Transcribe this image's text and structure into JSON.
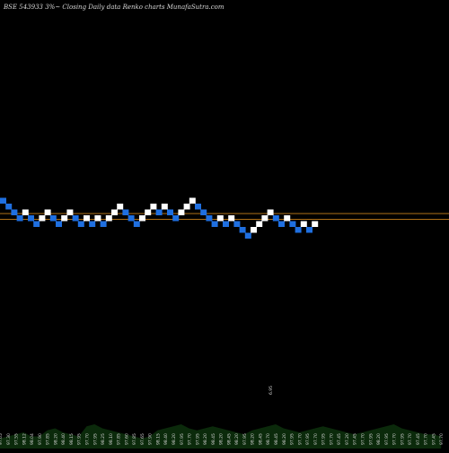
{
  "chart_data": {
    "type": "renko",
    "title": "BSE 543933 3%~   Closing Daily data  Renko  charts MunafaSutra.com",
    "colors": {
      "background": "#000000",
      "up": "#ffffff",
      "down": "#1f6fe0",
      "line": "#c8801a",
      "volume": "#0b2a0b",
      "label": "#dcdcdc"
    },
    "reference_levels": [
      2.3,
      1.3
    ],
    "bricks": [
      {
        "dir": "down",
        "level": 4
      },
      {
        "dir": "down",
        "level": 3
      },
      {
        "dir": "down",
        "level": 2
      },
      {
        "dir": "down",
        "level": 1
      },
      {
        "dir": "up",
        "level": 2
      },
      {
        "dir": "down",
        "level": 1
      },
      {
        "dir": "down",
        "level": 0
      },
      {
        "dir": "up",
        "level": 1
      },
      {
        "dir": "up",
        "level": 2
      },
      {
        "dir": "down",
        "level": 1
      },
      {
        "dir": "down",
        "level": 0
      },
      {
        "dir": "up",
        "level": 1
      },
      {
        "dir": "up",
        "level": 2
      },
      {
        "dir": "down",
        "level": 1
      },
      {
        "dir": "down",
        "level": 0
      },
      {
        "dir": "up",
        "level": 1
      },
      {
        "dir": "down",
        "level": 0
      },
      {
        "dir": "up",
        "level": 1
      },
      {
        "dir": "down",
        "level": 0
      },
      {
        "dir": "up",
        "level": 1
      },
      {
        "dir": "up",
        "level": 2
      },
      {
        "dir": "up",
        "level": 3
      },
      {
        "dir": "down",
        "level": 2
      },
      {
        "dir": "down",
        "level": 1
      },
      {
        "dir": "down",
        "level": 0
      },
      {
        "dir": "up",
        "level": 1
      },
      {
        "dir": "up",
        "level": 2
      },
      {
        "dir": "up",
        "level": 3
      },
      {
        "dir": "down",
        "level": 2
      },
      {
        "dir": "up",
        "level": 3
      },
      {
        "dir": "down",
        "level": 2
      },
      {
        "dir": "down",
        "level": 1
      },
      {
        "dir": "up",
        "level": 2
      },
      {
        "dir": "up",
        "level": 3
      },
      {
        "dir": "up",
        "level": 4
      },
      {
        "dir": "down",
        "level": 3
      },
      {
        "dir": "down",
        "level": 2
      },
      {
        "dir": "down",
        "level": 1
      },
      {
        "dir": "down",
        "level": 0
      },
      {
        "dir": "up",
        "level": 1
      },
      {
        "dir": "down",
        "level": 0
      },
      {
        "dir": "up",
        "level": 1
      },
      {
        "dir": "down",
        "level": 0
      },
      {
        "dir": "down",
        "level": -1
      },
      {
        "dir": "down",
        "level": -2
      },
      {
        "dir": "up",
        "level": -1
      },
      {
        "dir": "up",
        "level": 0
      },
      {
        "dir": "up",
        "level": 1
      },
      {
        "dir": "up",
        "level": 2
      },
      {
        "dir": "down",
        "level": 1
      },
      {
        "dir": "down",
        "level": 0
      },
      {
        "dir": "up",
        "level": 1
      },
      {
        "dir": "down",
        "level": 0
      },
      {
        "dir": "down",
        "level": -1
      },
      {
        "dir": "up",
        "level": 0
      },
      {
        "dir": "down",
        "level": -1
      },
      {
        "dir": "up",
        "level": 0
      }
    ],
    "volume_values": [
      0.25,
      0.3,
      0.35,
      0.4,
      0.3,
      0.3,
      0.45,
      0.5,
      0.4,
      0.35,
      0.3,
      0.55,
      0.6,
      0.5,
      0.45,
      0.4,
      0.35,
      0.3,
      0.25,
      0.3,
      0.45,
      0.5,
      0.55,
      0.6,
      0.5,
      0.45,
      0.5,
      0.55,
      0.5,
      0.45,
      0.4,
      0.35,
      0.45,
      0.5,
      0.55,
      0.6,
      0.5,
      0.45,
      0.4,
      0.45,
      0.5,
      0.55,
      0.5,
      0.45,
      0.4,
      0.35,
      0.4,
      0.45,
      0.5,
      0.55,
      0.6,
      0.5,
      0.45,
      0.4,
      0.35,
      0.35,
      0.3
    ],
    "volume_labels": [
      "97.05",
      "97.30",
      "97.55",
      "98.12",
      "98.04",
      "97.90",
      "97.85",
      "98.20",
      "98.40",
      "98.15",
      "97.95",
      "97.70",
      "97.95",
      "98.25",
      "98.10",
      "97.85",
      "97.60",
      "97.85",
      "97.65",
      "97.90",
      "98.15",
      "98.40",
      "98.20",
      "97.95",
      "97.70",
      "97.95",
      "98.20",
      "98.45",
      "98.20",
      "98.45",
      "98.20",
      "97.95",
      "98.20",
      "98.45",
      "98.70",
      "98.45",
      "98.20",
      "97.95",
      "97.70",
      "97.95",
      "97.70",
      "97.95",
      "97.70",
      "97.45",
      "97.20",
      "97.45",
      "97.70",
      "97.95",
      "98.20",
      "97.95",
      "97.70",
      "97.95",
      "97.70",
      "97.45",
      "97.70",
      "97.45",
      "97.70"
    ],
    "annotation": "6.95"
  }
}
